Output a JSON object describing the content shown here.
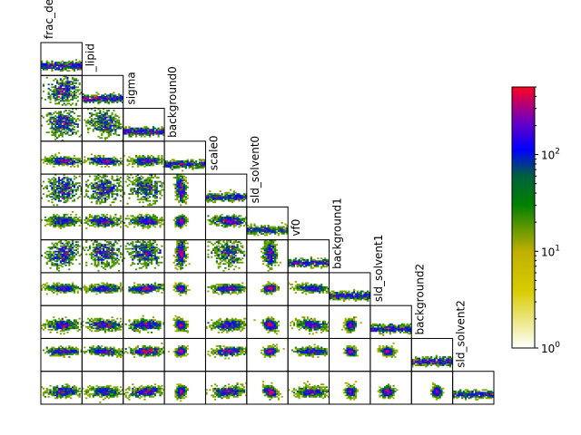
{
  "chart_data": {
    "type": "heatmap",
    "subtype": "corner-plot (lower-triangle pairwise 2D histograms)",
    "parameters": [
      "frac_deut",
      "_lipid",
      "sigma",
      "background0",
      "scale0",
      "sld_solvent0",
      "vf0",
      "background1",
      "sld_solvent1",
      "background2",
      "sld_solvent2"
    ],
    "n_parameters": 11,
    "colorbar": {
      "scale": "log",
      "range": [
        1,
        500
      ],
      "ticks": [
        {
          "value": 1,
          "label": "10^0"
        },
        {
          "value": 10,
          "label": "10^1"
        },
        {
          "value": 100,
          "label": "10^2"
        }
      ],
      "colors": [
        "#ffffff",
        "#c8b400",
        "#008000",
        "#0000ff",
        "#ff0000"
      ]
    },
    "grid": false,
    "legend": "colorbar right"
  }
}
